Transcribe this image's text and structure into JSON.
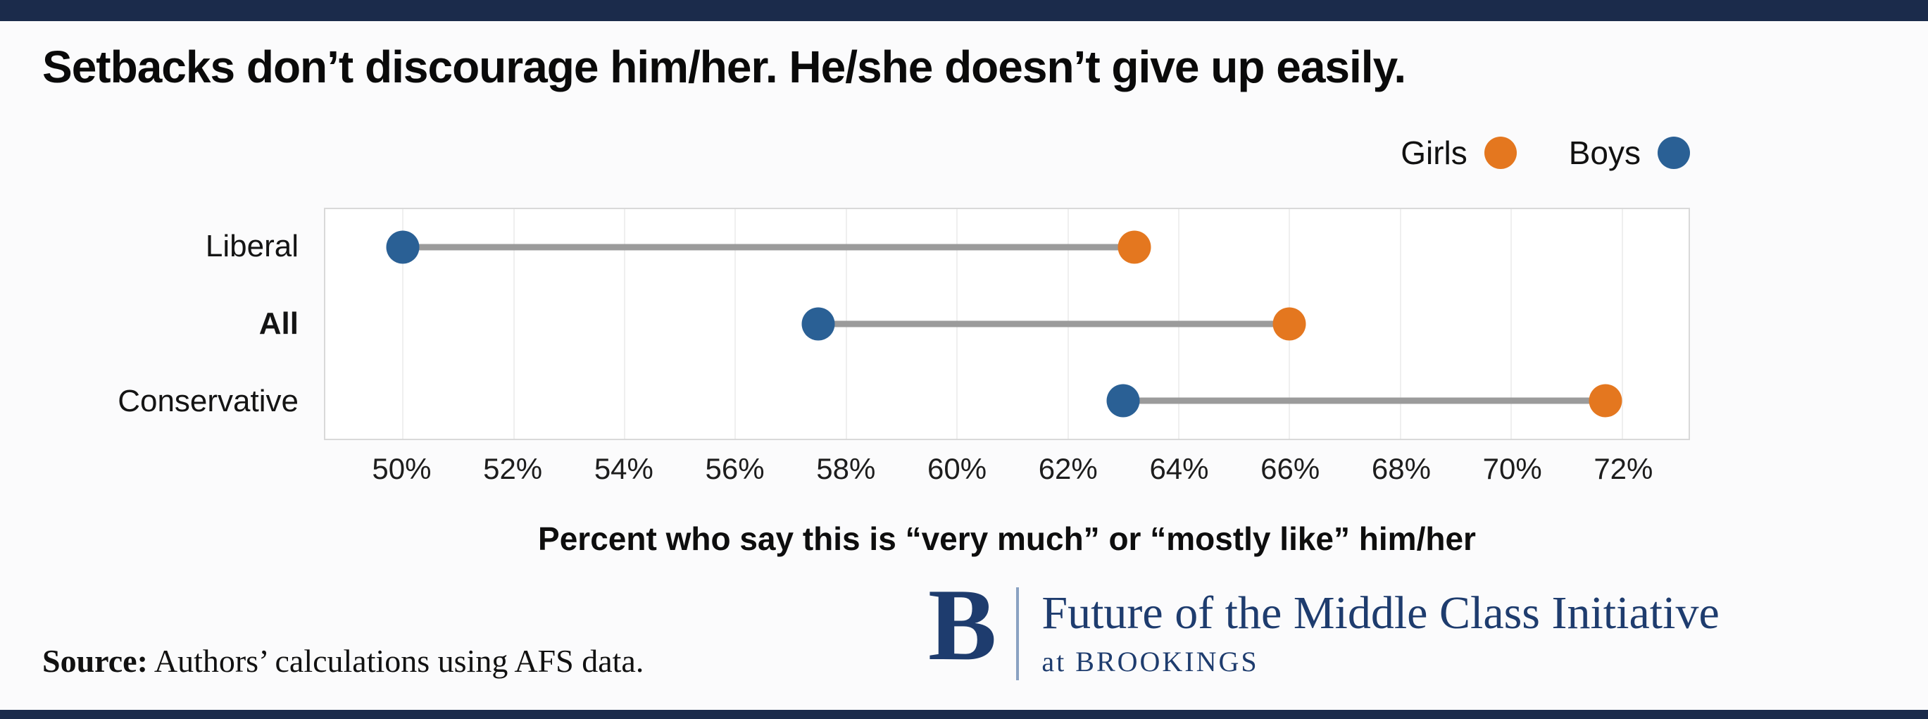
{
  "page": {
    "title": "Setbacks don’t discourage him/her. He/she doesn’t give up easily.",
    "source_label": "Source:",
    "source_text": " Authors’ calculations using AFS data.",
    "logo": {
      "letter": "B",
      "line1": "Future of the Middle Class Initiative",
      "line2": "at BROOKINGS"
    }
  },
  "legend": {
    "girls_label": "Girls",
    "boys_label": "Boys"
  },
  "colors": {
    "girls": "#E4771F",
    "boys": "#2A6095",
    "navy_bar": "#1B2B4B",
    "logo_navy": "#1E3C6E",
    "logo_separator": "#8AA2C2",
    "connector": "#9B9B9B"
  },
  "chart_data": {
    "type": "dumbbell",
    "title": "Setbacks don’t discourage him/her. He/she doesn’t give up easily.",
    "categories": [
      "Liberal",
      "All",
      "Conservative"
    ],
    "bold_category": "All",
    "series": [
      {
        "name": "Boys",
        "color_key": "boys",
        "values": [
          50.0,
          57.5,
          63.0
        ]
      },
      {
        "name": "Girls",
        "color_key": "girls",
        "values": [
          63.2,
          66.0,
          71.7
        ]
      }
    ],
    "xlabel": "Percent who say this is “very much” or “mostly like” him/her",
    "x_ticks": [
      50,
      52,
      54,
      56,
      58,
      60,
      62,
      64,
      66,
      68,
      70,
      72
    ],
    "x_tick_suffix": "%",
    "xlim": [
      48.6,
      73.2
    ],
    "grid": true,
    "legend_position": "top-right"
  }
}
